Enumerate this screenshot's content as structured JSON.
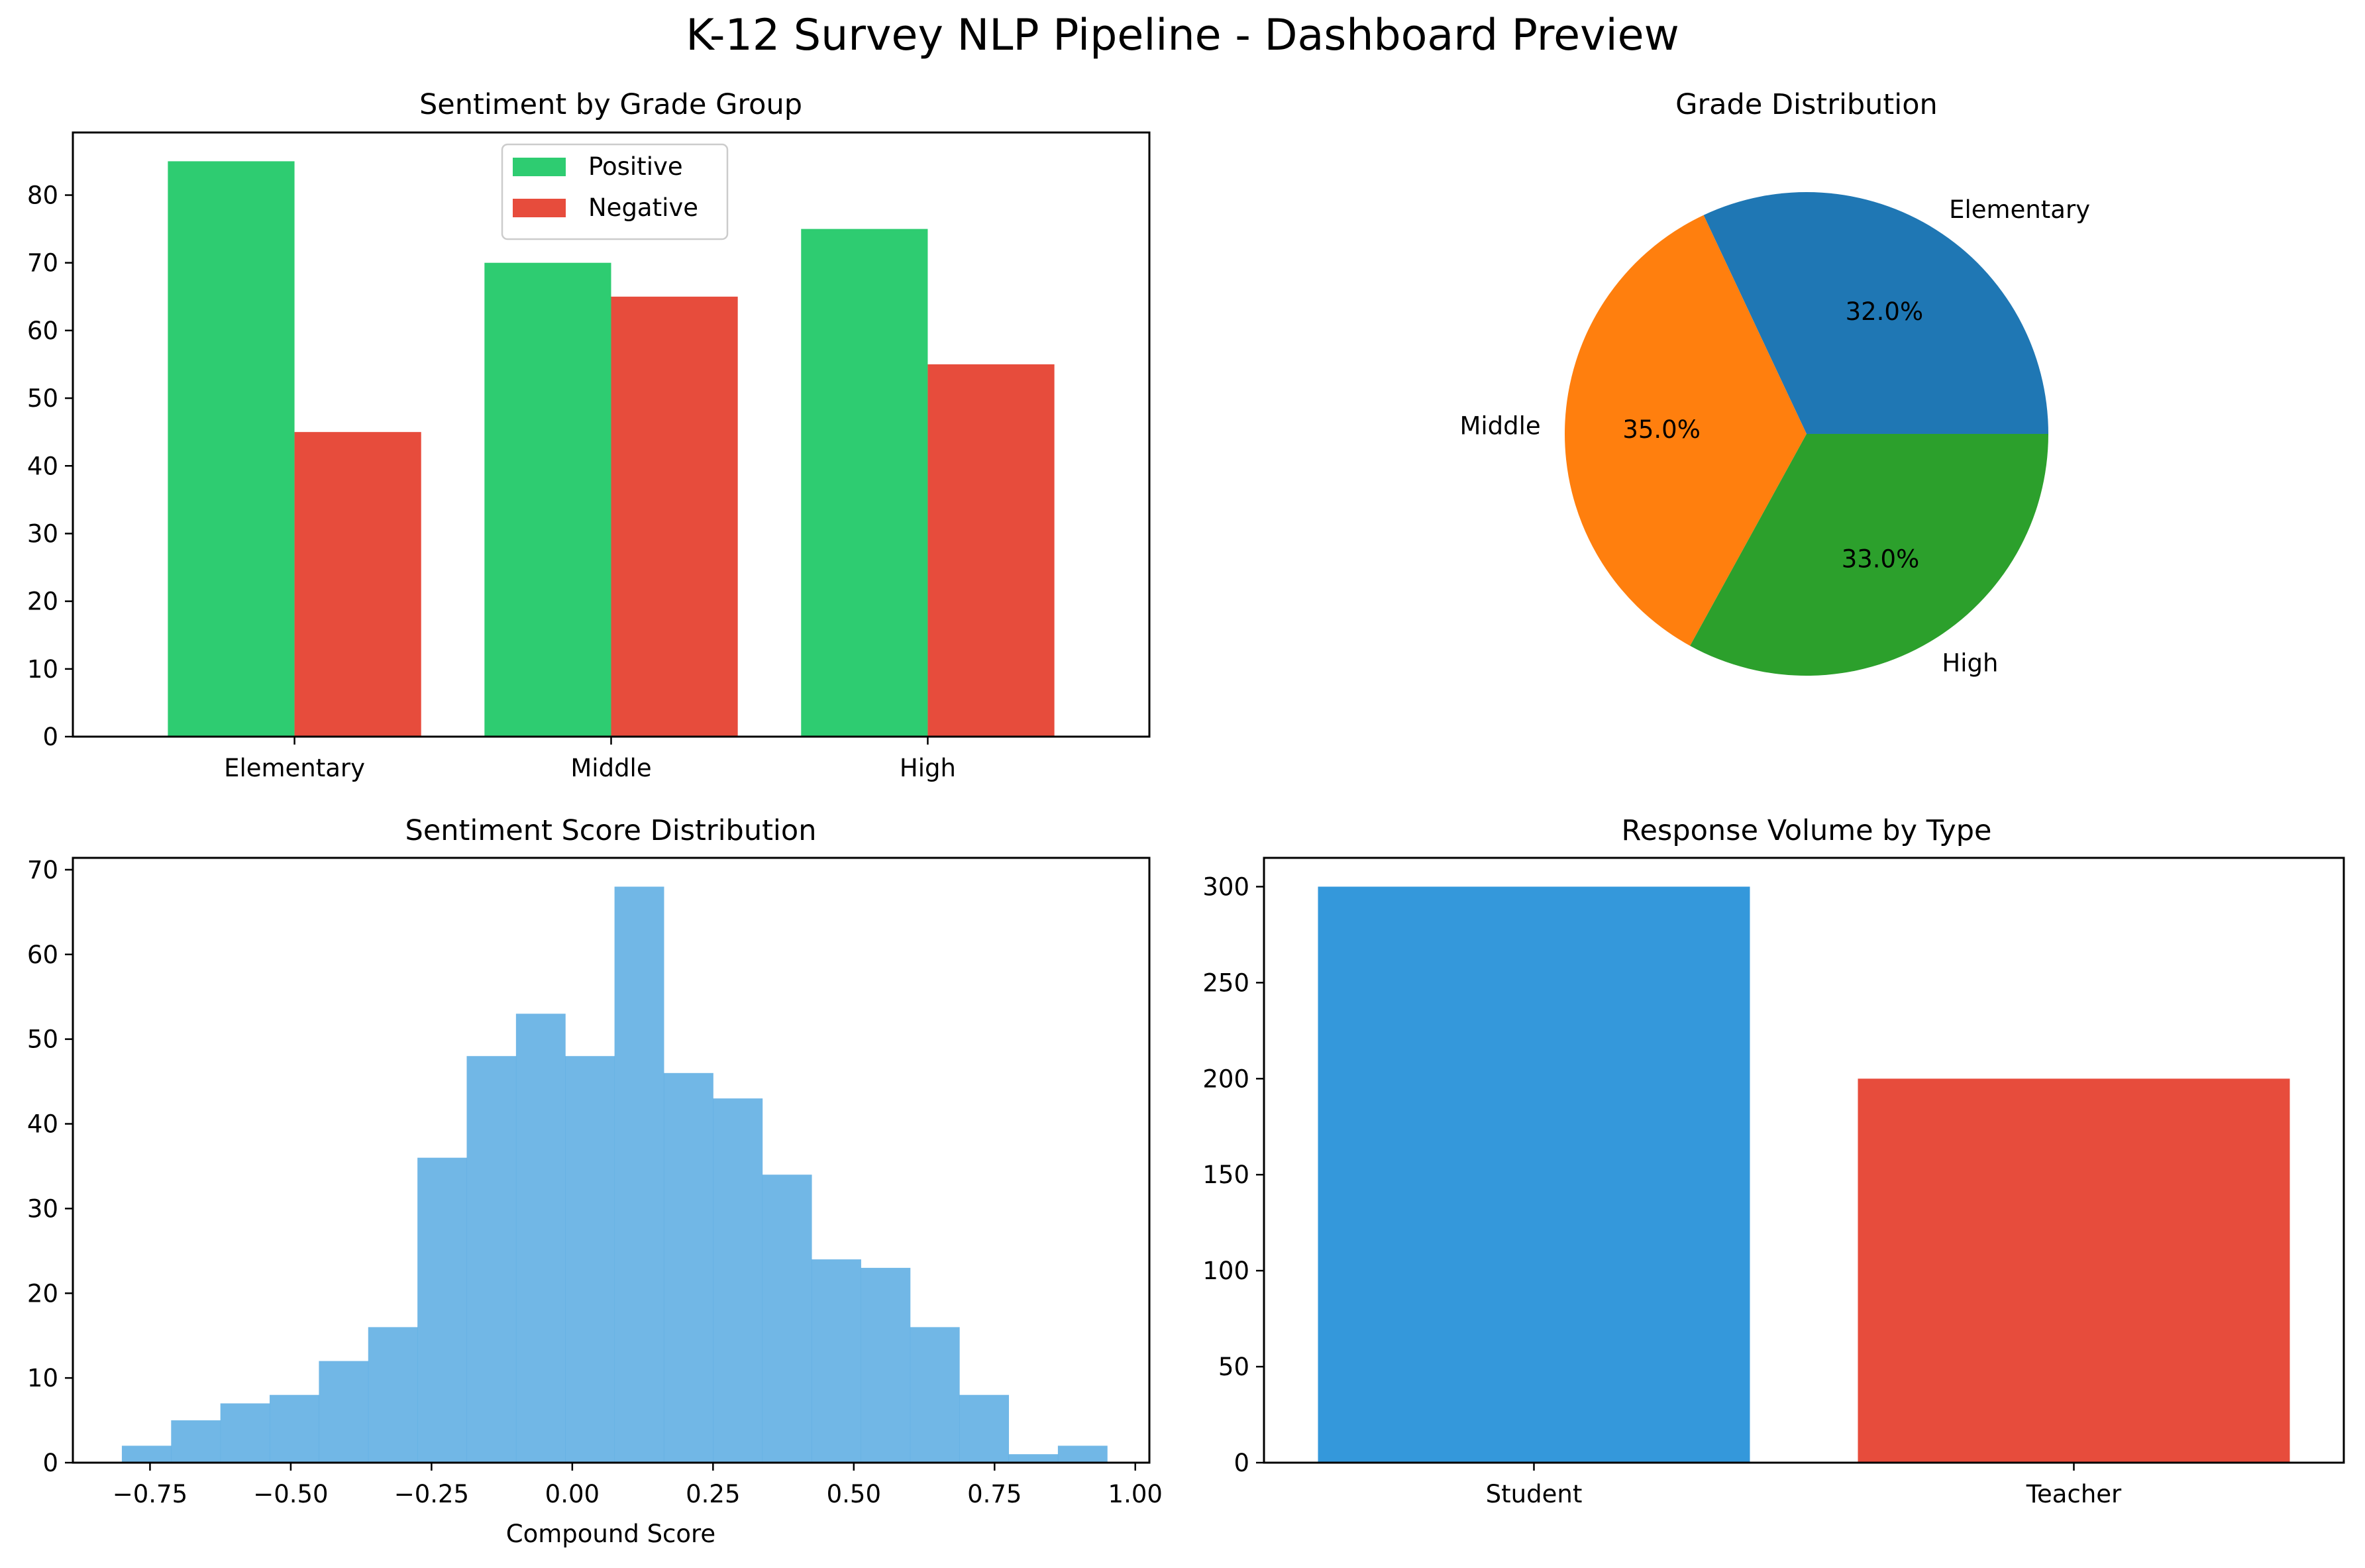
{
  "figure": {
    "title": "K-12 Survey NLP Pipeline - Dashboard Preview"
  },
  "chart_data": [
    {
      "type": "bar",
      "title": "Sentiment by Grade Group",
      "categories": [
        "Elementary",
        "Middle",
        "High"
      ],
      "series": [
        {
          "name": "Positive",
          "color": "#2ecc71",
          "values": [
            85,
            70,
            75
          ]
        },
        {
          "name": "Negative",
          "color": "#e74c3c",
          "values": [
            45,
            65,
            55
          ]
        }
      ],
      "ylim": [
        0,
        89.25
      ],
      "yticks": [
        0,
        10,
        20,
        30,
        40,
        50,
        60,
        70,
        80
      ],
      "legend": "top-center",
      "grid": false
    },
    {
      "type": "pie",
      "title": "Grade Distribution",
      "labels": [
        "Elementary",
        "Middle",
        "High"
      ],
      "values": [
        32.0,
        35.0,
        33.0
      ],
      "percent_labels": [
        "32.0%",
        "35.0%",
        "33.0%"
      ],
      "colors": [
        "#1f77b4",
        "#ff7f0e",
        "#2ca02c"
      ]
    },
    {
      "type": "bar",
      "subtype": "histogram",
      "title": "Sentiment Score Distribution",
      "xlabel": "Compound Score",
      "color": "#5dade2",
      "bin_start": -0.8,
      "bin_width": 0.0875,
      "counts": [
        2,
        5,
        7,
        8,
        12,
        16,
        36,
        48,
        53,
        48,
        68,
        46,
        43,
        34,
        24,
        23,
        16,
        8,
        1,
        2
      ],
      "xlim": [
        -0.887,
        1.025
      ],
      "ylim": [
        0,
        71.4
      ],
      "xticks": [
        "−0.75",
        "−0.50",
        "−0.25",
        "0.00",
        "0.25",
        "0.50",
        "0.75",
        "1.00"
      ],
      "xtick_values": [
        -0.75,
        -0.5,
        -0.25,
        0,
        0.25,
        0.5,
        0.75,
        1.0
      ],
      "yticks": [
        0,
        10,
        20,
        30,
        40,
        50,
        60,
        70
      ],
      "grid": false
    },
    {
      "type": "bar",
      "title": "Response Volume by Type",
      "categories": [
        "Student",
        "Teacher"
      ],
      "values": [
        300,
        200
      ],
      "colors": [
        "#3498db",
        "#e74c3c"
      ],
      "ylim": [
        0,
        315
      ],
      "yticks": [
        0,
        50,
        100,
        150,
        200,
        250,
        300
      ],
      "grid": false
    }
  ]
}
